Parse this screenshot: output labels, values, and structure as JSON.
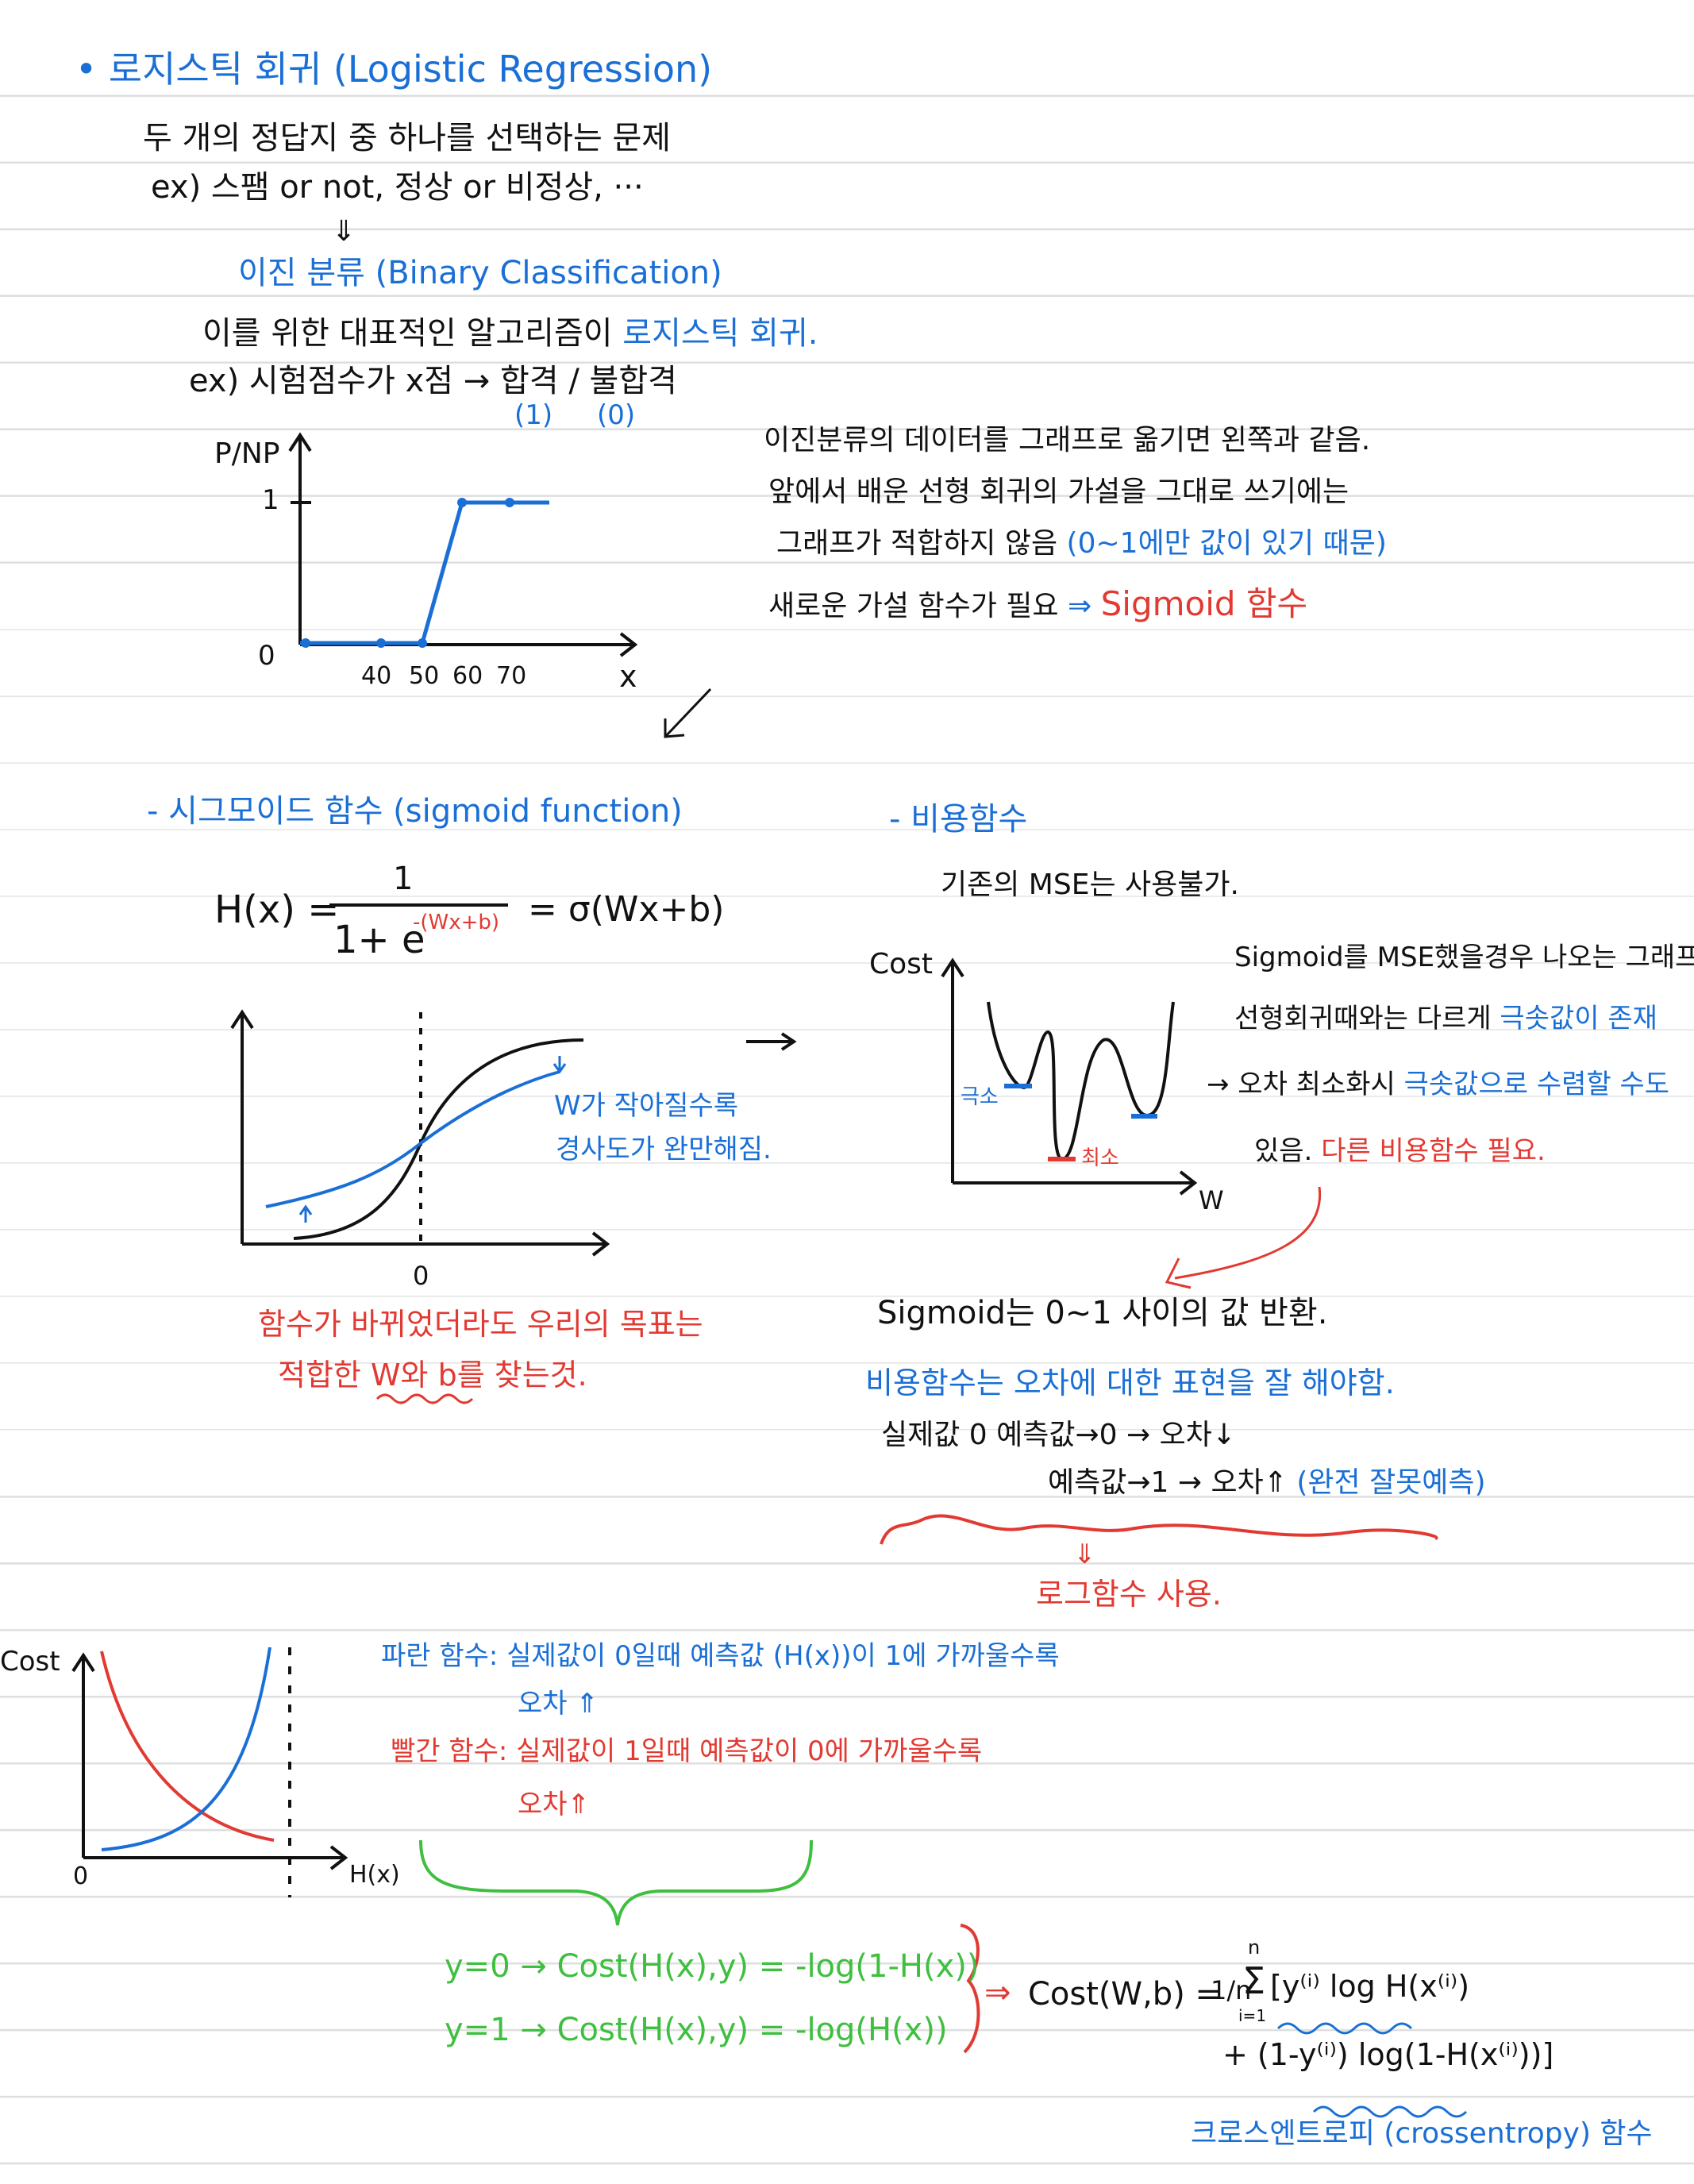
{
  "section1": {
    "title": "• 로지스틱 회귀 (Logistic Regression)",
    "line1": "두 개의 정답지 중 하나를 선택하는 문제",
    "line2": "ex) 스팸 or not, 정상 or 비정상, ···",
    "arrow": "⇓",
    "binary": "이진 분류 (Binary Classification)",
    "line3_a": "이를 위한 대표적인 알고리즘이",
    "line3_b": "로지스틱 회귀.",
    "line4": "ex) 시험점수가 x점 → 합격 / 불합격",
    "pass_code": "(1)",
    "fail_code": "(0)"
  },
  "graph1": {
    "ylabel": "P/NP",
    "ytick": "1",
    "origin": "0",
    "xticks": [
      "40",
      "50",
      "60",
      "70"
    ],
    "xlabel": "x"
  },
  "note1": {
    "l1": "이진분류의 데이터를 그래프로 옮기면 왼쪽과 같음.",
    "l2": "앞에서 배운 선형 회귀의 가설을 그대로 쓰기에는",
    "l3_a": "그래프가 적합하지 않음",
    "l3_b": "(0~1에만 값이 있기 때문)",
    "l4_a": "새로운 가설 함수가 필요",
    "l4_b": "⇒",
    "l4_c": "Sigmoid 함수"
  },
  "sigmoid": {
    "title": "- 시그모이드 함수 (sigmoid function)",
    "lhs": "H(x) =",
    "num": "1",
    "den": "1+ e",
    "exp": "-(Wx+b)",
    "rhs": "= σ(Wx+b)",
    "origin": "0",
    "note1": "W가 작아질수록",
    "note2": "경사도가 완만해짐.",
    "goal1": "함수가 바뀌었더라도 우리의 목표는",
    "goal2": "적합한 W와 b를 찾는것."
  },
  "cost": {
    "title": "- 비용함수",
    "l1": "기존의 MSE는 사용불가.",
    "ylabel": "Cost",
    "xlabel": "W",
    "local": "극소",
    "global": "최소",
    "n1": "Sigmoid를 MSE했을경우 나오는 그래프.",
    "n2_a": "선형회귀때와는 다르게",
    "n2_b": "극솟값이 존재",
    "n3_a": "→ 오차 최소화시",
    "n3_b": "극솟값으로 수렴할 수도",
    "n4_a": "있음.",
    "n4_b": "다른 비용함수 필요."
  },
  "sig2": {
    "l1": "Sigmoid는 0~1 사이의 값 반환.",
    "l2": "비용함수는 오차에 대한 표현을 잘 해야함.",
    "l3": "실제값 0   예측값→0   → 오차↓",
    "l4_a": "예측값→1   → 오차⇑",
    "l4_b": "(완전 잘못예측)",
    "arrow": "⇓",
    "l5": "로그함수 사용."
  },
  "log": {
    "ylabel": "Cost",
    "xlabel": "H(x)",
    "origin": "0",
    "blue1": "파란 함수: 실제값이 0일때 예측값 (H(x))이 1에 가까울수록",
    "blue2": "오차 ⇑",
    "red1": "빨간 함수: 실제값이 1일때 예측값이 0에 가까울수록",
    "red2": "오차⇑",
    "g1": "y=0 → Cost(H(x),y) = -log(1-H(x))",
    "g2": "y=1 → Cost(H(x),y) = -log(H(x))",
    "arrow": "⇒",
    "f1": "Cost(W,b) = ",
    "frac": "1/n",
    "sigma": "Σ",
    "sig_top": "n",
    "sig_bot": "i=1",
    "f2": "[y⁽ⁱ⁾ log H(x⁽ⁱ⁾)",
    "f3": "+ (1-y⁽ⁱ⁾) log(1-H(x⁽ⁱ⁾))]",
    "name": "크로스엔트로피 (crossentropy) 함수"
  },
  "colors": {
    "blue": "#1a6fd6",
    "red": "#e23a32",
    "green": "#3fbf3f",
    "black": "#111111"
  }
}
